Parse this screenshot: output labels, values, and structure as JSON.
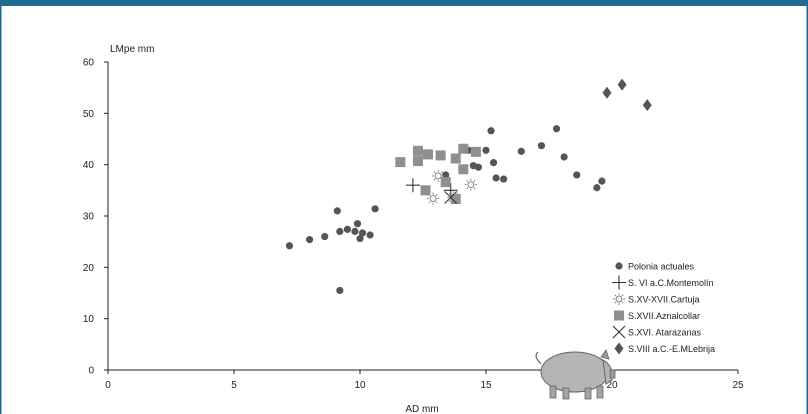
{
  "colors": {
    "background": "#ffffff",
    "frame": "#1f6a93",
    "marker": "#555555",
    "square": "#8f8f8f",
    "text": "#222222",
    "pig": "#b5b5b5"
  },
  "icons": {
    "decoration": "pig-icon"
  },
  "chart_data": {
    "type": "scatter",
    "title": "",
    "xlabel": "AD mm",
    "ylabel": "LMpe mm",
    "xlim": [
      0,
      25
    ],
    "ylim": [
      0,
      60
    ],
    "x_ticks": [
      "0",
      "5",
      "10",
      "15",
      "20",
      "25"
    ],
    "y_ticks": [
      "0",
      "10",
      "20",
      "30",
      "40",
      "50",
      "60"
    ],
    "grid": false,
    "legend_position": "bottom-right",
    "series": [
      {
        "name": "Polonia actuales",
        "marker": "circle",
        "points": [
          [
            7.2,
            24.2
          ],
          [
            8.0,
            25.4
          ],
          [
            8.6,
            26.0
          ],
          [
            9.1,
            31.0
          ],
          [
            9.2,
            27.0
          ],
          [
            9.5,
            27.4
          ],
          [
            9.8,
            27.0
          ],
          [
            9.9,
            28.5
          ],
          [
            10.0,
            25.6
          ],
          [
            10.1,
            26.7
          ],
          [
            10.4,
            26.3
          ],
          [
            10.6,
            31.4
          ],
          [
            9.2,
            15.5
          ],
          [
            13.4,
            38.0
          ],
          [
            14.3,
            42.8
          ],
          [
            14.5,
            39.8
          ],
          [
            14.7,
            39.5
          ],
          [
            15.0,
            42.8
          ],
          [
            15.2,
            46.6
          ],
          [
            15.3,
            40.4
          ],
          [
            15.4,
            37.4
          ],
          [
            15.7,
            37.2
          ],
          [
            16.4,
            42.6
          ],
          [
            17.2,
            43.7
          ],
          [
            17.8,
            47.0
          ],
          [
            18.1,
            41.5
          ],
          [
            18.6,
            38.0
          ],
          [
            19.4,
            35.5
          ],
          [
            19.6,
            36.8
          ]
        ]
      },
      {
        "name": "S. VI a.C.Montemolín",
        "marker": "plus",
        "points": [
          [
            12.1,
            36.0
          ],
          [
            13.6,
            35.0
          ]
        ]
      },
      {
        "name": "S.XV-XVII.Cartuja",
        "marker": "sun",
        "points": [
          [
            13.1,
            37.8
          ],
          [
            12.9,
            33.4
          ],
          [
            13.7,
            33.6
          ],
          [
            14.4,
            36.1
          ]
        ]
      },
      {
        "name": "S.XVII.Aznalcollar",
        "marker": "square",
        "points": [
          [
            11.6,
            40.5
          ],
          [
            12.3,
            42.7
          ],
          [
            12.3,
            40.7
          ],
          [
            12.7,
            42.0
          ],
          [
            13.2,
            41.8
          ],
          [
            13.8,
            41.2
          ],
          [
            14.1,
            43.1
          ],
          [
            14.1,
            39.1
          ],
          [
            14.6,
            42.5
          ],
          [
            13.4,
            36.6
          ],
          [
            12.6,
            35.0
          ],
          [
            13.8,
            33.3
          ]
        ]
      },
      {
        "name": "S.XVI. Atarazanas",
        "marker": "cross",
        "points": [
          [
            13.6,
            33.6
          ]
        ]
      },
      {
        "name": "S.VIII a.C.-E.MLebrija",
        "marker": "diamond",
        "points": [
          [
            19.8,
            54.0
          ],
          [
            20.4,
            55.6
          ],
          [
            21.4,
            51.6
          ]
        ]
      }
    ]
  }
}
